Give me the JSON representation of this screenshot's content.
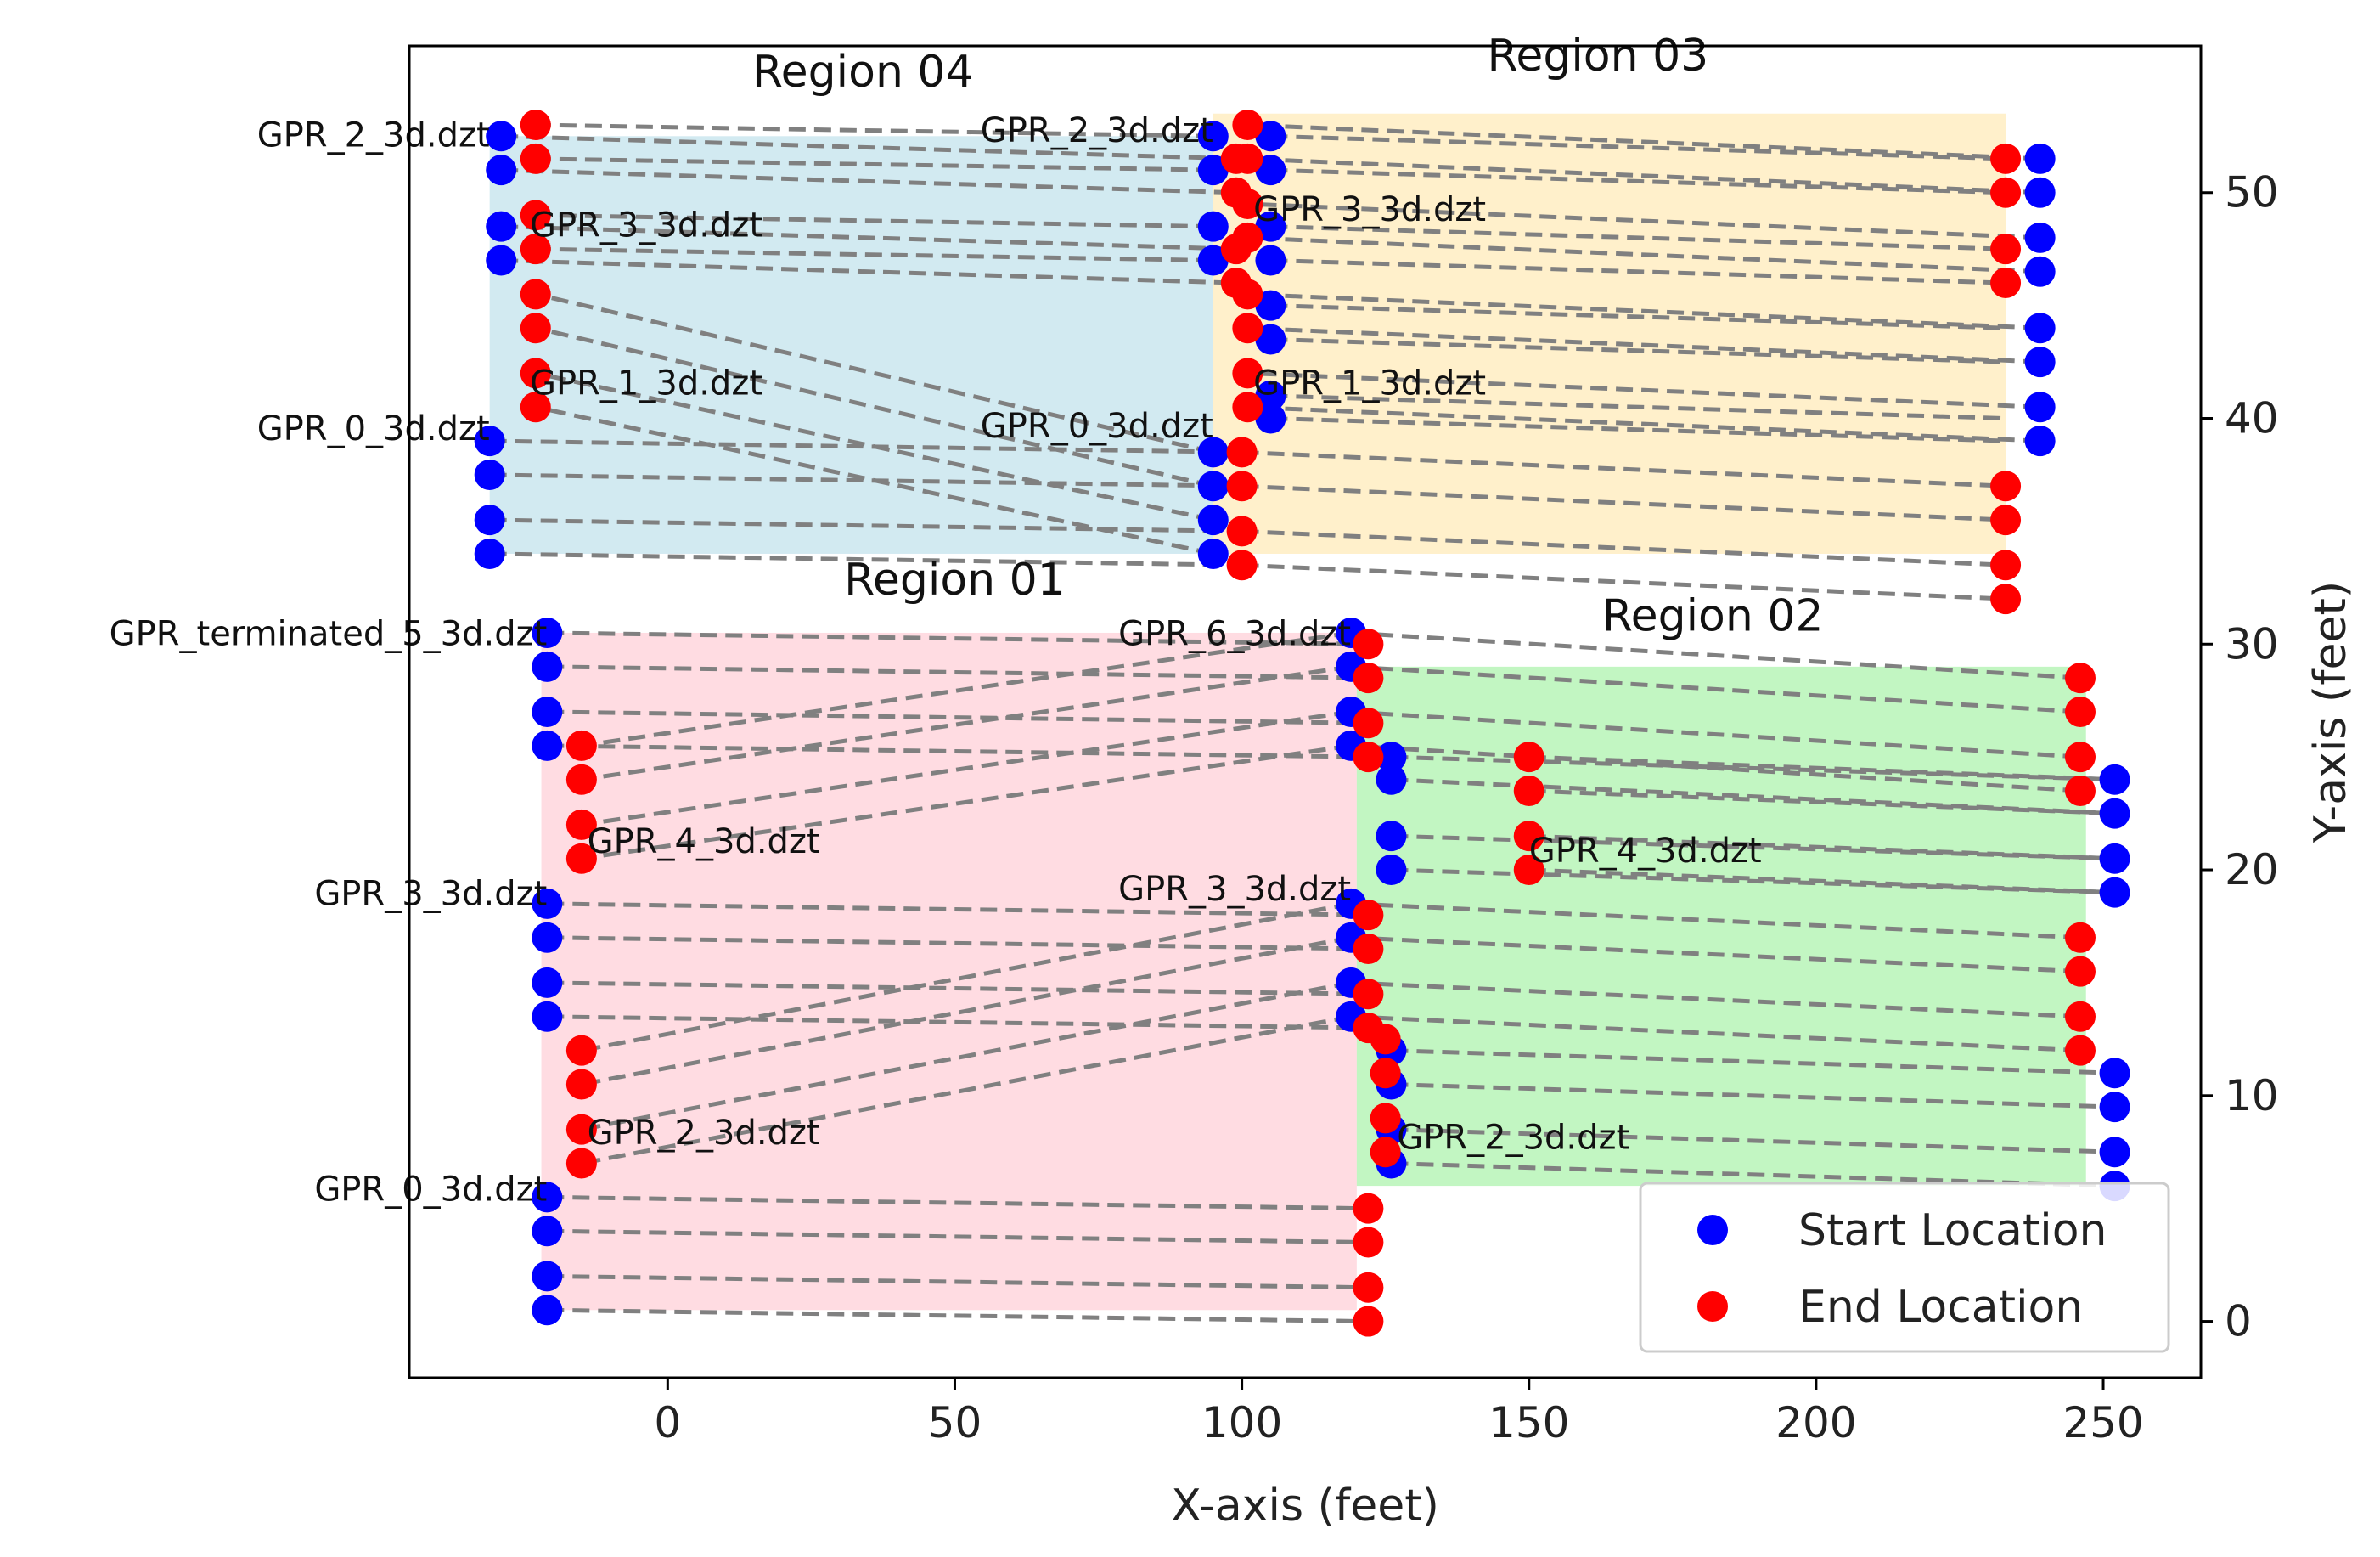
{
  "chart_data": {
    "type": "scatter",
    "xlabel": "X-axis (feet)",
    "ylabel": "Y-axis (feet)",
    "xlim": [
      -45,
      267
    ],
    "ylim": [
      -2.5,
      56.5
    ],
    "xticks": [
      0,
      50,
      100,
      150,
      200,
      250
    ],
    "yticks": [
      0,
      10,
      20,
      30,
      40,
      50
    ],
    "yaxis_side": "right",
    "grid": false,
    "legend_position": "lower-right",
    "legend": [
      {
        "label": "Start Location",
        "color": "#0000ff"
      },
      {
        "label": "End Location",
        "color": "#ff0000"
      }
    ],
    "regions": [
      {
        "name": "Region 04",
        "color": "#add8e6",
        "x0": -31,
        "x1": 95,
        "y0": 34,
        "y1": 52.5
      },
      {
        "name": "Region 03",
        "color": "#ffe4a0",
        "x0": 95,
        "x1": 233,
        "y0": 34,
        "y1": 53.5
      },
      {
        "name": "Region 01",
        "color": "#ffc0cb",
        "x0": -22,
        "x1": 120,
        "y0": 0.5,
        "y1": 30.5
      },
      {
        "name": "Region 02",
        "color": "#90ee90",
        "x0": 120,
        "x1": 247,
        "y0": 6,
        "y1": 29
      }
    ],
    "region_titles": [
      {
        "text": "Region 04",
        "x": 34,
        "y": 54.7
      },
      {
        "text": "Region 03",
        "x": 162,
        "y": 55.4
      },
      {
        "text": "Region 01",
        "x": 50,
        "y": 32.2
      },
      {
        "text": "Region 02",
        "x": 182,
        "y": 30.6
      }
    ],
    "file_labels": [
      {
        "text": "GPR_2_3d.dzt",
        "x": -31,
        "y": 52.5,
        "anchor": "end"
      },
      {
        "text": "GPR_3_3d.dzt",
        "x": -24,
        "y": 48.5,
        "anchor": "start"
      },
      {
        "text": "GPR_1_3d.dzt",
        "x": -24,
        "y": 41.5,
        "anchor": "start"
      },
      {
        "text": "GPR_0_3d.dzt",
        "x": -31,
        "y": 39.5,
        "anchor": "end"
      },
      {
        "text": "GPR_2_3d.dzt",
        "x": 95,
        "y": 52.7,
        "anchor": "end"
      },
      {
        "text": "GPR_3_3d.dzt",
        "x": 102,
        "y": 49.2,
        "anchor": "start"
      },
      {
        "text": "GPR_1_3d.dzt",
        "x": 102,
        "y": 41.5,
        "anchor": "start"
      },
      {
        "text": "GPR_0_3d.dzt",
        "x": 95,
        "y": 39.6,
        "anchor": "end"
      },
      {
        "text": "GPR_terminated_5_3d.dzt",
        "x": -21,
        "y": 30.4,
        "anchor": "end"
      },
      {
        "text": "GPR_4_3d.dzt",
        "x": -14,
        "y": 21.2,
        "anchor": "start"
      },
      {
        "text": "GPR_3_3d.dzt",
        "x": -21,
        "y": 18.9,
        "anchor": "end"
      },
      {
        "text": "GPR_2_3d.dzt",
        "x": -14,
        "y": 8.3,
        "anchor": "start"
      },
      {
        "text": "GPR_0_3d.dzt",
        "x": -21,
        "y": 5.8,
        "anchor": "end"
      },
      {
        "text": "GPR_6_3d.dzt",
        "x": 119,
        "y": 30.4,
        "anchor": "end"
      },
      {
        "text": "GPR_4_3d.dzt",
        "x": 150,
        "y": 20.8,
        "anchor": "start"
      },
      {
        "text": "GPR_3_3d.dzt",
        "x": 119,
        "y": 19.1,
        "anchor": "end"
      },
      {
        "text": "GPR_2_3d.dzt",
        "x": 127,
        "y": 8.1,
        "anchor": "start"
      }
    ],
    "lines": [
      {
        "start": [
          -29,
          52.5
        ],
        "end": [
          99,
          51.5
        ]
      },
      {
        "start": [
          -29,
          51.0
        ],
        "end": [
          99,
          50.0
        ]
      },
      {
        "start": [
          -29,
          48.5
        ],
        "end": [
          99,
          47.5
        ]
      },
      {
        "start": [
          -29,
          47.0
        ],
        "end": [
          99,
          46.0
        ]
      },
      {
        "start": [
          95,
          52.5
        ],
        "end": [
          -23,
          53.0
        ]
      },
      {
        "start": [
          95,
          51.0
        ],
        "end": [
          -23,
          51.5
        ]
      },
      {
        "start": [
          95,
          48.5
        ],
        "end": [
          -23,
          49.0
        ]
      },
      {
        "start": [
          95,
          47.0
        ],
        "end": [
          -23,
          47.5
        ]
      },
      {
        "start": [
          -31,
          39.0
        ],
        "end": [
          100,
          38.5
        ]
      },
      {
        "start": [
          -31,
          37.5
        ],
        "end": [
          100,
          37.0
        ]
      },
      {
        "start": [
          -31,
          35.5
        ],
        "end": [
          100,
          35.0
        ]
      },
      {
        "start": [
          -31,
          34.0
        ],
        "end": [
          100,
          33.5
        ]
      },
      {
        "start": [
          95,
          38.5
        ],
        "end": [
          -23,
          45.5
        ]
      },
      {
        "start": [
          95,
          37.0
        ],
        "end": [
          -23,
          44.0
        ]
      },
      {
        "start": [
          95,
          35.5
        ],
        "end": [
          -23,
          42.0
        ]
      },
      {
        "start": [
          95,
          34.0
        ],
        "end": [
          -23,
          40.5
        ]
      },
      {
        "start": [
          105,
          52.5
        ],
        "end": [
          233,
          51.5
        ]
      },
      {
        "start": [
          105,
          51.0
        ],
        "end": [
          233,
          50.0
        ]
      },
      {
        "start": [
          105,
          48.5
        ],
        "end": [
          233,
          47.5
        ]
      },
      {
        "start": [
          105,
          47.0
        ],
        "end": [
          233,
          46.0
        ]
      },
      {
        "start": [
          239,
          51.5
        ],
        "end": [
          101,
          53.0
        ]
      },
      {
        "start": [
          239,
          50.0
        ],
        "end": [
          101,
          51.5
        ]
      },
      {
        "start": [
          239,
          48.0
        ],
        "end": [
          101,
          49.5
        ]
      },
      {
        "start": [
          239,
          46.5
        ],
        "end": [
          101,
          48.0
        ]
      },
      {
        "start": [
          105,
          45.0
        ],
        "end": [
          233,
          44.0
        ]
      },
      {
        "start": [
          105,
          43.5
        ],
        "end": [
          233,
          42.5
        ]
      },
      {
        "start": [
          105,
          41.0
        ],
        "end": [
          233,
          40.0
        ]
      },
      {
        "start": [
          105,
          40.0
        ],
        "end": [
          233,
          39.0
        ]
      },
      {
        "start": [
          239,
          44.0
        ],
        "end": [
          101,
          45.5
        ]
      },
      {
        "start": [
          239,
          42.5
        ],
        "end": [
          101,
          44.0
        ]
      },
      {
        "start": [
          239,
          40.5
        ],
        "end": [
          101,
          42.0
        ]
      },
      {
        "start": [
          239,
          39.0
        ],
        "end": [
          101,
          40.5
        ]
      },
      {
        "start": [
          100,
          38.5
        ],
        "end": [
          233,
          37.0
        ]
      },
      {
        "start": [
          100,
          37.0
        ],
        "end": [
          233,
          35.5
        ]
      },
      {
        "start": [
          100,
          35.0
        ],
        "end": [
          233,
          33.5
        ]
      },
      {
        "start": [
          100,
          33.5
        ],
        "end": [
          233,
          32.0
        ]
      },
      {
        "start": [
          -21,
          30.5
        ],
        "end": [
          122,
          30.0
        ]
      },
      {
        "start": [
          -21,
          29.0
        ],
        "end": [
          122,
          28.5
        ]
      },
      {
        "start": [
          -21,
          27.0
        ],
        "end": [
          122,
          26.5
        ]
      },
      {
        "start": [
          -21,
          25.5
        ],
        "end": [
          122,
          25.0
        ]
      },
      {
        "start": [
          119,
          30.5
        ],
        "end": [
          -15,
          25.5
        ]
      },
      {
        "start": [
          119,
          29.0
        ],
        "end": [
          -15,
          24.0
        ]
      },
      {
        "start": [
          119,
          27.0
        ],
        "end": [
          -15,
          22.0
        ]
      },
      {
        "start": [
          119,
          25.5
        ],
        "end": [
          -15,
          20.5
        ]
      },
      {
        "start": [
          -21,
          18.5
        ],
        "end": [
          122,
          18.0
        ]
      },
      {
        "start": [
          -21,
          17.0
        ],
        "end": [
          122,
          16.5
        ]
      },
      {
        "start": [
          -21,
          15.0
        ],
        "end": [
          122,
          14.5
        ]
      },
      {
        "start": [
          -21,
          13.5
        ],
        "end": [
          122,
          13.0
        ]
      },
      {
        "start": [
          119,
          18.5
        ],
        "end": [
          -15,
          12.0
        ]
      },
      {
        "start": [
          119,
          17.0
        ],
        "end": [
          -15,
          10.5
        ]
      },
      {
        "start": [
          119,
          15.0
        ],
        "end": [
          -15,
          8.5
        ]
      },
      {
        "start": [
          119,
          13.5
        ],
        "end": [
          -15,
          7.0
        ]
      },
      {
        "start": [
          -21,
          5.5
        ],
        "end": [
          122,
          5.0
        ]
      },
      {
        "start": [
          -21,
          4.0
        ],
        "end": [
          122,
          3.5
        ]
      },
      {
        "start": [
          -21,
          2.0
        ],
        "end": [
          122,
          1.5
        ]
      },
      {
        "start": [
          -21,
          0.5
        ],
        "end": [
          122,
          0.0
        ]
      },
      {
        "start": [
          119,
          30.5
        ],
        "end": [
          246,
          28.5
        ]
      },
      {
        "start": [
          119,
          29.0
        ],
        "end": [
          246,
          27.0
        ]
      },
      {
        "start": [
          119,
          27.0
        ],
        "end": [
          246,
          25.0
        ]
      },
      {
        "start": [
          119,
          25.5
        ],
        "end": [
          246,
          23.5
        ]
      },
      {
        "start": [
          126,
          25.0
        ],
        "end": [
          252,
          24.0
        ]
      },
      {
        "start": [
          126,
          24.0
        ],
        "end": [
          252,
          22.5
        ]
      },
      {
        "start": [
          126,
          21.5
        ],
        "end": [
          252,
          20.5
        ]
      },
      {
        "start": [
          126,
          20.0
        ],
        "end": [
          252,
          19.0
        ]
      },
      {
        "start": [
          150,
          25.0
        ],
        "end": [
          252,
          24.0
        ]
      },
      {
        "start": [
          150,
          23.5
        ],
        "end": [
          252,
          22.5
        ]
      },
      {
        "start": [
          150,
          21.5
        ],
        "end": [
          252,
          20.5
        ]
      },
      {
        "start": [
          150,
          20.0
        ],
        "end": [
          252,
          19.0
        ]
      },
      {
        "start": [
          119,
          18.5
        ],
        "end": [
          246,
          17.0
        ]
      },
      {
        "start": [
          119,
          17.0
        ],
        "end": [
          246,
          15.5
        ]
      },
      {
        "start": [
          119,
          15.0
        ],
        "end": [
          246,
          13.5
        ]
      },
      {
        "start": [
          119,
          13.5
        ],
        "end": [
          246,
          12.0
        ]
      },
      {
        "start": [
          126,
          12.0
        ],
        "end": [
          252,
          11.0
        ]
      },
      {
        "start": [
          126,
          10.5
        ],
        "end": [
          252,
          9.5
        ]
      },
      {
        "start": [
          126,
          8.5
        ],
        "end": [
          252,
          7.5
        ]
      },
      {
        "start": [
          126,
          7.0
        ],
        "end": [
          252,
          6.0
        ]
      }
    ],
    "start_points": [
      [
        -29,
        52.5
      ],
      [
        -29,
        51.0
      ],
      [
        -29,
        48.5
      ],
      [
        -29,
        47.0
      ],
      [
        95,
        52.5
      ],
      [
        95,
        51.0
      ],
      [
        95,
        48.5
      ],
      [
        95,
        47.0
      ],
      [
        -31,
        39.0
      ],
      [
        -31,
        37.5
      ],
      [
        -31,
        35.5
      ],
      [
        -31,
        34.0
      ],
      [
        95,
        38.5
      ],
      [
        95,
        37.0
      ],
      [
        95,
        35.5
      ],
      [
        95,
        34.0
      ],
      [
        105,
        52.5
      ],
      [
        105,
        51.0
      ],
      [
        105,
        48.5
      ],
      [
        105,
        47.0
      ],
      [
        105,
        45.0
      ],
      [
        105,
        43.5
      ],
      [
        105,
        41.0
      ],
      [
        105,
        40.0
      ],
      [
        239,
        51.5
      ],
      [
        239,
        50.0
      ],
      [
        239,
        48.0
      ],
      [
        239,
        46.5
      ],
      [
        239,
        44.0
      ],
      [
        239,
        42.5
      ],
      [
        239,
        40.5
      ],
      [
        239,
        39.0
      ],
      [
        -21,
        30.5
      ],
      [
        -21,
        29.0
      ],
      [
        -21,
        27.0
      ],
      [
        -21,
        25.5
      ],
      [
        -21,
        18.5
      ],
      [
        -21,
        17.0
      ],
      [
        -21,
        15.0
      ],
      [
        -21,
        13.5
      ],
      [
        -21,
        5.5
      ],
      [
        -21,
        4.0
      ],
      [
        -21,
        2.0
      ],
      [
        -21,
        0.5
      ],
      [
        119,
        30.5
      ],
      [
        119,
        29.0
      ],
      [
        119,
        27.0
      ],
      [
        119,
        25.5
      ],
      [
        119,
        18.5
      ],
      [
        119,
        17.0
      ],
      [
        119,
        15.0
      ],
      [
        119,
        13.5
      ],
      [
        126,
        25.0
      ],
      [
        126,
        24.0
      ],
      [
        126,
        21.5
      ],
      [
        126,
        20.0
      ],
      [
        126,
        12.0
      ],
      [
        126,
        10.5
      ],
      [
        126,
        8.5
      ],
      [
        126,
        7.0
      ],
      [
        252,
        24.0
      ],
      [
        252,
        22.5
      ],
      [
        252,
        20.5
      ],
      [
        252,
        19.0
      ],
      [
        252,
        11.0
      ],
      [
        252,
        9.5
      ],
      [
        252,
        7.5
      ],
      [
        252,
        6.0
      ]
    ],
    "end_points": [
      [
        -23,
        53.0
      ],
      [
        -23,
        51.5
      ],
      [
        -23,
        49.0
      ],
      [
        -23,
        47.5
      ],
      [
        -23,
        45.5
      ],
      [
        -23,
        44.0
      ],
      [
        -23,
        42.0
      ],
      [
        -23,
        40.5
      ],
      [
        99,
        51.5
      ],
      [
        99,
        50.0
      ],
      [
        99,
        47.5
      ],
      [
        99,
        46.0
      ],
      [
        100,
        38.5
      ],
      [
        100,
        37.0
      ],
      [
        100,
        35.0
      ],
      [
        100,
        33.5
      ],
      [
        101,
        53.0
      ],
      [
        101,
        51.5
      ],
      [
        101,
        49.5
      ],
      [
        101,
        48.0
      ],
      [
        101,
        45.5
      ],
      [
        101,
        44.0
      ],
      [
        101,
        42.0
      ],
      [
        101,
        40.5
      ],
      [
        233,
        51.5
      ],
      [
        233,
        50.0
      ],
      [
        233,
        47.5
      ],
      [
        233,
        46.0
      ],
      [
        233,
        37.0
      ],
      [
        233,
        35.5
      ],
      [
        233,
        33.5
      ],
      [
        233,
        32.0
      ],
      [
        -15,
        25.5
      ],
      [
        -15,
        24.0
      ],
      [
        -15,
        22.0
      ],
      [
        -15,
        20.5
      ],
      [
        -15,
        12.0
      ],
      [
        -15,
        10.5
      ],
      [
        -15,
        8.5
      ],
      [
        -15,
        7.0
      ],
      [
        122,
        30.0
      ],
      [
        122,
        28.5
      ],
      [
        122,
        26.5
      ],
      [
        122,
        25.0
      ],
      [
        122,
        18.0
      ],
      [
        122,
        16.5
      ],
      [
        122,
        14.5
      ],
      [
        122,
        13.0
      ],
      [
        122,
        5.0
      ],
      [
        122,
        3.5
      ],
      [
        122,
        1.5
      ],
      [
        122,
        0.0
      ],
      [
        125,
        12.5
      ],
      [
        125,
        11.0
      ],
      [
        125,
        9.0
      ],
      [
        125,
        7.5
      ],
      [
        150,
        25.0
      ],
      [
        150,
        23.5
      ],
      [
        150,
        21.5
      ],
      [
        150,
        20.0
      ],
      [
        246,
        28.5
      ],
      [
        246,
        27.0
      ],
      [
        246,
        25.0
      ],
      [
        246,
        23.5
      ],
      [
        246,
        17.0
      ],
      [
        246,
        15.5
      ],
      [
        246,
        13.5
      ],
      [
        246,
        12.0
      ]
    ]
  }
}
